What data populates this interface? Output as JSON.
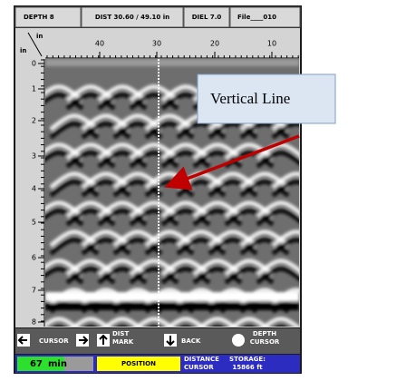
{
  "header": {
    "depth": "DEPTH  8",
    "dist": "DIST 30.60 / 49.10 in",
    "diel": "DIEL 7.0",
    "file": "File____010"
  },
  "axes": {
    "x_unit": "in",
    "y_unit": "in",
    "x_labels": [
      "40",
      "30",
      "20",
      "10"
    ],
    "y_labels": [
      "0",
      "1",
      "2",
      "3",
      "4",
      "5",
      "6",
      "7",
      "8"
    ]
  },
  "annotation": "Vertical Line",
  "buttons": [
    "CURSOR",
    "DIST MARK",
    "BACK",
    "DEPTH CURSOR"
  ],
  "status": {
    "time_value": "67",
    "time_unit": "min",
    "mode": "POSITION",
    "distance_cursor": "DISTANCE CURSOR",
    "storage": "STORAGE: 15866 ft"
  }
}
